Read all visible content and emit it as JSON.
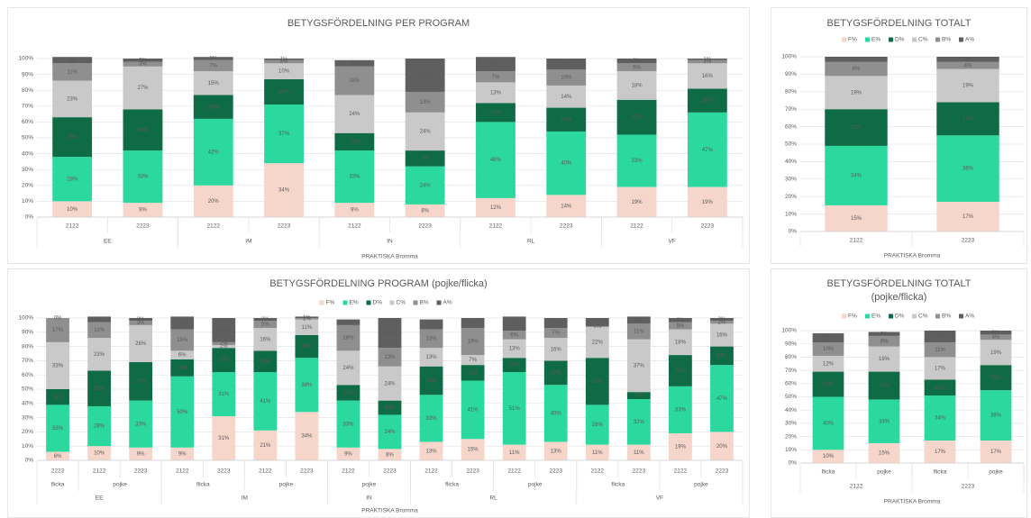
{
  "chart_data": [
    {
      "type": "bar",
      "stacked": true,
      "title": "BETYGSFÖRDELNING PER PROGRAM",
      "legend": false,
      "grid": true,
      "categories": [
        [
          "EE",
          "2122"
        ],
        [
          "EE",
          "2223"
        ],
        [
          "IM",
          "2122"
        ],
        [
          "IM",
          "2223"
        ],
        [
          "IN",
          "2122"
        ],
        [
          "IN",
          "2223"
        ],
        [
          "RL",
          "2122"
        ],
        [
          "RL",
          "2223"
        ],
        [
          "VF",
          "2122"
        ],
        [
          "VF",
          "2223"
        ]
      ],
      "x_label": "PRAKTISKA Bromma",
      "ylim": [
        0,
        100
      ],
      "yticks": [
        {
          "value": 0,
          "label": "0%"
        },
        {
          "value": 10,
          "label": "10%"
        },
        {
          "value": 20,
          "label": "20%"
        },
        {
          "value": 30,
          "label": "30%"
        },
        {
          "value": 40,
          "label": "40%"
        },
        {
          "value": 50,
          "label": "50%"
        },
        {
          "value": 60,
          "label": "60%"
        },
        {
          "value": 70,
          "label": "70%"
        },
        {
          "value": 80,
          "label": "80%"
        },
        {
          "value": 90,
          "label": "90%"
        },
        {
          "value": 100,
          "label": "100%"
        }
      ],
      "series": [
        {
          "color": "#f6d5cb",
          "values": [
            10,
            9,
            20,
            34,
            9,
            8,
            12,
            14,
            19,
            19
          ],
          "value_labels": [
            "10%",
            "9%",
            "20%",
            "34%",
            "9%",
            "8%",
            "12%",
            "14%",
            "19%",
            "19%"
          ]
        },
        {
          "color": "#2bd99f",
          "values": [
            28,
            33,
            42,
            37,
            33,
            24,
            48,
            40,
            33,
            47
          ],
          "value_labels": [
            "28%",
            "33%",
            "42%",
            "37%",
            "33%",
            "24%",
            "48%",
            "40%",
            "33%",
            "47%"
          ]
        },
        {
          "color": "#0f6b45",
          "values": [
            25,
            26,
            15,
            16,
            11,
            10,
            12,
            15,
            22,
            15
          ],
          "value_labels": [
            "25%",
            "26%",
            "15%",
            "16%",
            "11%",
            "10%",
            "12%",
            "15%",
            "22%",
            "15%"
          ]
        },
        {
          "color": "#c9c9c9",
          "values": [
            23,
            27,
            15,
            10,
            24,
            24,
            13,
            14,
            18,
            16
          ],
          "value_labels": [
            "23%",
            "27%",
            "15%",
            "10%",
            "24%",
            "24%",
            "13%",
            "14%",
            "18%",
            "16%"
          ]
        },
        {
          "color": "#8f8f8f",
          "values": [
            11,
            3,
            7,
            2,
            18,
            13,
            7,
            10,
            5,
            2
          ],
          "value_labels": [
            "11%",
            "3%",
            "7%",
            "2%",
            "18%",
            "13%",
            "7%",
            "10%",
            "5%",
            "2%"
          ]
        },
        {
          "color": "#5f5f5f",
          "values": [
            4,
            2,
            2,
            1,
            4,
            21,
            9,
            7,
            3,
            1
          ],
          "value_labels": [
            "4%",
            "2%",
            "2%",
            "1%",
            "4%",
            "21%",
            "9%",
            "7%",
            "3%",
            "1%"
          ]
        }
      ]
    },
    {
      "type": "bar",
      "stacked": true,
      "title": "BETYGSFÖRDELNING TOTALT",
      "legend": "top",
      "grid": true,
      "categories": [
        [
          "2122"
        ],
        [
          "2223"
        ]
      ],
      "x_label": "PRAKTISKA Bromma",
      "ylim": [
        0,
        100
      ],
      "yticks": [
        {
          "value": 0,
          "label": "0%"
        },
        {
          "value": 10,
          "label": "10%"
        },
        {
          "value": 20,
          "label": "20%"
        },
        {
          "value": 30,
          "label": "30%"
        },
        {
          "value": 40,
          "label": "40%"
        },
        {
          "value": 50,
          "label": "50%"
        },
        {
          "value": 60,
          "label": "60%"
        },
        {
          "value": 70,
          "label": "70%"
        },
        {
          "value": 80,
          "label": "80%"
        },
        {
          "value": 90,
          "label": "90%"
        },
        {
          "value": 100,
          "label": "100%"
        }
      ],
      "series": [
        {
          "name": "F%",
          "color": "#f6d5cb",
          "values": [
            15,
            17
          ],
          "value_labels": [
            "15%",
            "17%"
          ]
        },
        {
          "name": "E%",
          "color": "#2bd99f",
          "values": [
            34,
            38
          ],
          "value_labels": [
            "34%",
            "38%"
          ]
        },
        {
          "name": "D%",
          "color": "#0f6b45",
          "values": [
            21,
            19
          ],
          "value_labels": [
            "21%",
            "19%"
          ]
        },
        {
          "name": "C%",
          "color": "#c9c9c9",
          "values": [
            19,
            19
          ],
          "value_labels": [
            "19%",
            "19%"
          ]
        },
        {
          "name": "B%",
          "color": "#8f8f8f",
          "values": [
            8,
            4
          ],
          "value_labels": [
            "8%",
            "4%"
          ]
        },
        {
          "name": "A%",
          "color": "#5f5f5f",
          "values": [
            3,
            3
          ],
          "value_labels": [
            "3%",
            "3%"
          ]
        }
      ]
    },
    {
      "type": "bar",
      "stacked": true,
      "title": "BETYGSFÖRDELNING PROGRAM (pojke/flicka)",
      "legend": "top",
      "grid": true,
      "categories": [
        [
          "EE",
          "flicka",
          "2223"
        ],
        [
          "EE",
          "pojke",
          "2122"
        ],
        [
          "EE",
          "pojke",
          "2223"
        ],
        [
          "IM",
          "flicka",
          "2122"
        ],
        [
          "IM",
          "flicka",
          "2223"
        ],
        [
          "IM",
          "pojke",
          "2122"
        ],
        [
          "IM",
          "pojke",
          "2223"
        ],
        [
          "IN",
          "pojke",
          "2122"
        ],
        [
          "IN",
          "pojke",
          "2223"
        ],
        [
          "RL",
          "flicka",
          "2122"
        ],
        [
          "RL",
          "flicka",
          "2223"
        ],
        [
          "RL",
          "pojke",
          "2122"
        ],
        [
          "RL",
          "pojke",
          "2223"
        ],
        [
          "VF",
          "flicka",
          "2122"
        ],
        [
          "VF",
          "flicka",
          "2223"
        ],
        [
          "VF",
          "pojke",
          "2122"
        ],
        [
          "VF",
          "pojke",
          "2223"
        ]
      ],
      "x_label": "PRAKTISKA Bromma",
      "ylim": [
        0,
        100
      ],
      "yticks": [
        {
          "value": 0,
          "label": "0%"
        },
        {
          "value": 10,
          "label": "10%"
        },
        {
          "value": 20,
          "label": "20%"
        },
        {
          "value": 30,
          "label": "30%"
        },
        {
          "value": 40,
          "label": "40%"
        },
        {
          "value": 50,
          "label": "50%"
        },
        {
          "value": 60,
          "label": "60%"
        },
        {
          "value": 70,
          "label": "70%"
        },
        {
          "value": 80,
          "label": "80%"
        },
        {
          "value": 90,
          "label": "90%"
        },
        {
          "value": 100,
          "label": "100%"
        }
      ],
      "series": [
        {
          "name": "F%",
          "color": "#f6d5cb",
          "values": [
            6,
            10,
            9,
            9,
            31,
            21,
            34,
            9,
            8,
            13,
            15,
            11,
            13,
            11,
            11,
            19,
            20
          ],
          "value_labels": [
            "6%",
            "10%",
            "9%",
            "9%",
            "31%",
            "21%",
            "34%",
            "9%",
            "8%",
            "13%",
            "15%",
            "11%",
            "13%",
            "11%",
            "11%",
            "19%",
            "20%"
          ]
        },
        {
          "name": "E%",
          "color": "#2bd99f",
          "values": [
            33,
            28,
            33,
            50,
            31,
            41,
            38,
            33,
            24,
            33,
            41,
            51,
            40,
            28,
            32,
            33,
            47
          ],
          "value_labels": [
            "33%",
            "28%",
            "33%",
            "50%",
            "31%",
            "41%",
            "38%",
            "33%",
            "24%",
            "33%",
            "41%",
            "51%",
            "40%",
            "28%",
            "32%",
            "33%",
            "47%"
          ]
        },
        {
          "name": "D%",
          "color": "#0f6b45",
          "values": [
            11,
            25,
            27,
            12,
            17,
            15,
            16,
            11,
            10,
            20,
            11,
            10,
            17,
            33,
            5,
            22,
            13
          ],
          "value_labels": [
            "11%",
            "25%",
            "27%",
            "12%",
            "17%",
            "15%",
            "16%",
            "11%",
            "10%",
            "20%",
            "11%",
            "10%",
            "17%",
            "33%",
            "5%",
            "22%",
            "13%"
          ]
        },
        {
          "name": "C%",
          "color": "#c9c9c9",
          "values": [
            33,
            23,
            26,
            6,
            2,
            16,
            11,
            24,
            24,
            13,
            7,
            13,
            16,
            22,
            37,
            18,
            16
          ],
          "value_labels": [
            "33%",
            "23%",
            "26%",
            "6%",
            "2%",
            "16%",
            "11%",
            "24%",
            "24%",
            "13%",
            "7%",
            "13%",
            "16%",
            "22%",
            "37%",
            "18%",
            "16%"
          ]
        },
        {
          "name": "B%",
          "color": "#8f8f8f",
          "values": [
            17,
            11,
            3,
            15,
            2,
            5,
            1,
            18,
            13,
            13,
            19,
            6,
            7,
            0,
            11,
            5,
            2
          ],
          "value_labels": [
            "17%",
            "11%",
            "3%",
            "15%",
            "2%",
            "5%",
            "1%",
            "18%",
            "13%",
            "13%",
            "19%",
            "6%",
            "7%",
            "0%",
            "11%",
            "5%",
            "2%"
          ]
        },
        {
          "name": "A%",
          "color": "#5f5f5f",
          "values": [
            0,
            4,
            2,
            9,
            17,
            2,
            1,
            4,
            21,
            7,
            7,
            10,
            7,
            6,
            5,
            3,
            2
          ],
          "value_labels": [
            "0%",
            "4%",
            "2%",
            "9%",
            "17%",
            "2%",
            "1%",
            "4%",
            "21%",
            "7%",
            "7%",
            "10%",
            "7%",
            "6%",
            "5%",
            "3%",
            "2%"
          ]
        }
      ]
    },
    {
      "type": "bar",
      "stacked": true,
      "title": "BETYGSFÖRDELNING TOTALT (pojke/flicka)",
      "legend": "top",
      "grid": true,
      "categories": [
        [
          "2122",
          "flicka"
        ],
        [
          "2122",
          "pojke"
        ],
        [
          "2223",
          "flicka"
        ],
        [
          "2223",
          "pojke"
        ]
      ],
      "x_label": "PRAKTISKA Bromma",
      "ylim": [
        0,
        100
      ],
      "yticks": [
        {
          "value": 0,
          "label": "0%"
        },
        {
          "value": 10,
          "label": "10%"
        },
        {
          "value": 20,
          "label": "20%"
        },
        {
          "value": 30,
          "label": "30%"
        },
        {
          "value": 40,
          "label": "40%"
        },
        {
          "value": 50,
          "label": "50%"
        },
        {
          "value": 60,
          "label": "60%"
        },
        {
          "value": 70,
          "label": "70%"
        },
        {
          "value": 80,
          "label": "80%"
        },
        {
          "value": 90,
          "label": "90%"
        },
        {
          "value": 100,
          "label": "100%"
        }
      ],
      "series": [
        {
          "name": "F%",
          "color": "#f6d5cb",
          "values": [
            10,
            15,
            17,
            17
          ],
          "value_labels": [
            "10%",
            "15%",
            "17%",
            "17%"
          ]
        },
        {
          "name": "E%",
          "color": "#2bd99f",
          "values": [
            40,
            33,
            34,
            38
          ],
          "value_labels": [
            "40%",
            "33%",
            "34%",
            "38%"
          ]
        },
        {
          "name": "D%",
          "color": "#0f6b45",
          "values": [
            19,
            21,
            12,
            19
          ],
          "value_labels": [
            "19%",
            "21%",
            "12%",
            "19%"
          ]
        },
        {
          "name": "C%",
          "color": "#c9c9c9",
          "values": [
            12,
            19,
            17,
            19
          ],
          "value_labels": [
            "12%",
            "19%",
            "17%",
            "19%"
          ]
        },
        {
          "name": "B%",
          "color": "#8f8f8f",
          "values": [
            10,
            8,
            11,
            4
          ],
          "value_labels": [
            "10%",
            "8%",
            "11%",
            "4%"
          ]
        },
        {
          "name": "A%",
          "color": "#5f5f5f",
          "values": [
            7,
            3,
            9,
            3
          ],
          "value_labels": [
            "7%",
            "3%",
            "9%",
            "3%"
          ]
        }
      ]
    }
  ]
}
